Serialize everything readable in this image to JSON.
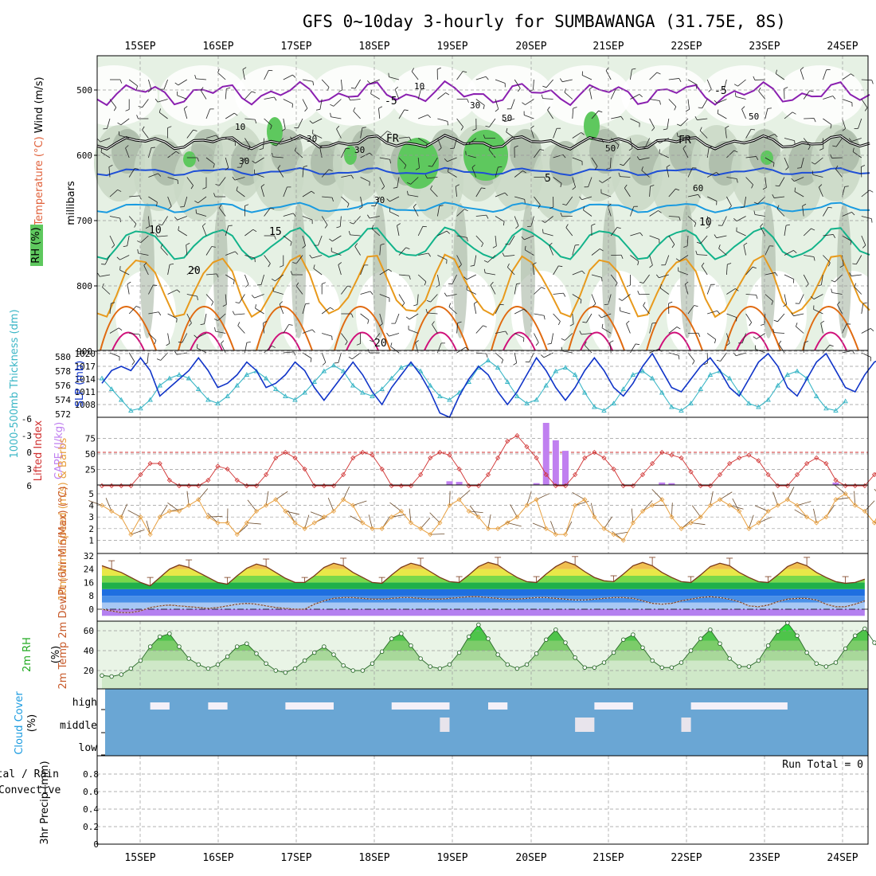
{
  "header": {
    "title": "GFS 0~10day 3-hourly for SUMBAWANGA (31.75E, 8S)"
  },
  "colors": {
    "purple": "#8a1fb0",
    "blue": "#1f4fd6",
    "lightblue": "#1a9be0",
    "teal": "#12b38a",
    "orange": "#e89a1c",
    "darkorange": "#e06a10",
    "magenta": "#d0107a",
    "rhLight": "#e6f1e4",
    "rhMid": "#c9d8c6",
    "rhDark": "#a6b5a3",
    "rhGreen": "#5ec85e",
    "slp": "#1034c8",
    "thick": "#3ab6c6",
    "li": "#d03030",
    "cape": "#c080f0",
    "wind": "#e8a040",
    "cloud": "#6aa6d4"
  },
  "chart_data": [
    {
      "type": "heatmap",
      "panel": "upper-air cross section",
      "title": "Temperature (°C) Wind (m/s) RH (%)",
      "ylabel": "millibars",
      "y_ticks": [
        "500",
        "600",
        "700",
        "800",
        "900"
      ],
      "ylim": [
        1000,
        450
      ],
      "x_dates": [
        "15SEP",
        "16SEP",
        "17SEP",
        "18SEP",
        "19SEP",
        "20SEP",
        "21SEP",
        "22SEP",
        "23SEP",
        "24SEP"
      ],
      "legend": {
        "rh": "RH (%)",
        "temperature": "Temperature (°C)",
        "wind": "Wind (m/s)"
      },
      "isotherm_labels": [
        "-5",
        "-5",
        "FR",
        "FR",
        "5",
        "10",
        "10",
        "15",
        "20",
        "20"
      ],
      "rh_contour_labels": [
        "10",
        "10",
        "30",
        "30",
        "30",
        "30",
        "50",
        "50",
        "50",
        "60",
        "30"
      ],
      "isotherms": [
        {
          "name": "-5",
          "level_mb": 505
        },
        {
          "name": "0 (FR)",
          "level_mb": 580
        },
        {
          "name": "5",
          "level_mb": 625
        },
        {
          "name": "10",
          "level_mb": 680
        },
        {
          "name": "15",
          "level_mb": 735
        },
        {
          "name": "20",
          "level_mb": 800
        }
      ]
    },
    {
      "type": "line",
      "panel": "thickness and SLP",
      "ylabel_left": "1000-500mb Thickness (dm)",
      "ylabel_right": "SLP (mb)",
      "left_ticks": [
        "580",
        "578",
        "576",
        "574",
        "572"
      ],
      "right_ticks": [
        "1020",
        "1017",
        "1014",
        "1011",
        "1008"
      ],
      "series": [
        {
          "name": "SLP",
          "values": [
            1013,
            1016,
            1017,
            1016,
            1019,
            1016,
            1010,
            1012,
            1014,
            1016,
            1019,
            1016,
            1012,
            1013,
            1015,
            1018,
            1016,
            1012,
            1013,
            1015,
            1018,
            1016,
            1012,
            1009,
            1012,
            1015,
            1018,
            1015,
            1011,
            1008,
            1012,
            1015,
            1018,
            1015,
            1011,
            1006,
            1005,
            1010,
            1014,
            1017,
            1015,
            1011,
            1008,
            1011,
            1015,
            1019,
            1016,
            1012,
            1009,
            1012,
            1016,
            1019,
            1016,
            1012,
            1010,
            1013,
            1017,
            1020,
            1016,
            1012,
            1011,
            1014,
            1017,
            1019,
            1016,
            1012,
            1010,
            1014,
            1018,
            1020,
            1017,
            1012,
            1010,
            1014,
            1018,
            1020,
            1016,
            1012,
            1011,
            1015,
            1018,
            1019
          ]
        },
        {
          "name": "Thickness",
          "values": [
            577,
            575.5,
            574,
            572.5,
            572.8,
            574,
            576,
            577,
            577.5,
            577,
            575.5,
            574,
            573.5,
            574.5,
            576,
            577.5,
            578,
            577,
            575.5,
            574.5,
            574,
            575,
            576.5,
            578,
            578.8,
            578,
            576,
            575,
            574.5,
            575.5,
            577,
            578.5,
            579,
            578,
            576,
            574.5,
            574,
            575,
            576.5,
            578.5,
            579.5,
            578.5,
            576.5,
            574.5,
            573.5,
            574,
            576,
            578,
            578.5,
            577.5,
            575,
            573,
            572.5,
            573.5,
            575.5,
            577.5,
            578,
            577,
            575,
            573,
            572.5,
            573.5,
            575.5,
            577.5,
            578,
            577,
            575,
            573.5,
            573,
            574,
            576,
            577.5,
            578,
            577,
            574.5,
            572.8,
            572.5,
            573.8
          ]
        }
      ]
    },
    {
      "type": "bar",
      "panel": "stability",
      "ylabel_left": "Lifted Index",
      "ylabel_right": "CAPE (J/kg)",
      "left_ticks": [
        "-6",
        "-3",
        "0",
        "3",
        "6"
      ],
      "right_ticks": [
        "75",
        "50",
        "25"
      ],
      "cape_bars": [
        {
          "t": 36,
          "v": 6
        },
        {
          "t": 37,
          "v": 5
        },
        {
          "t": 45,
          "v": 3
        },
        {
          "t": 46,
          "v": 100
        },
        {
          "t": 47,
          "v": 72
        },
        {
          "t": 48,
          "v": 55
        },
        {
          "t": 58,
          "v": 4
        },
        {
          "t": 59,
          "v": 3
        },
        {
          "t": 76,
          "v": 4
        },
        {
          "t": 84,
          "v": 4
        }
      ],
      "lifted_index": [
        6,
        6,
        6,
        6,
        4,
        2,
        2,
        5,
        6,
        6,
        6,
        5,
        2.5,
        3,
        5,
        6,
        6,
        4,
        1,
        0,
        1,
        3,
        6,
        6,
        6,
        4,
        1,
        0,
        0.5,
        3,
        6,
        6,
        6,
        4,
        1,
        0,
        0.5,
        3,
        6,
        6,
        4,
        1,
        -2,
        -3,
        -1,
        1,
        4,
        6,
        6,
        4,
        1,
        0,
        1,
        3,
        6,
        6,
        4,
        2,
        0,
        0.5,
        1,
        3.5,
        6,
        6,
        4,
        2,
        1,
        0.5,
        1.5,
        4,
        6,
        6,
        4,
        2,
        1,
        2,
        5,
        6,
        6,
        6,
        4,
        2
      ]
    },
    {
      "type": "line",
      "panel": "10m wind",
      "ylabel": "10m Wind Speed (m/s) & Barbs",
      "y_ticks": [
        "1",
        "2",
        "3",
        "4",
        "5"
      ],
      "series": [
        {
          "name": "Speed",
          "values": [
            4,
            3.5,
            3,
            1.5,
            3,
            1.5,
            3,
            3.5,
            3.5,
            4,
            4.5,
            3,
            2.5,
            2.5,
            1.5,
            2.5,
            3.5,
            4,
            4.5,
            3.5,
            2.5,
            2,
            2.5,
            3,
            3.5,
            4.5,
            4,
            2.5,
            2,
            2,
            3,
            3.5,
            2.5,
            2,
            1.5,
            2.5,
            4,
            4.5,
            3.5,
            3,
            2,
            2,
            2.5,
            3,
            4,
            4.5,
            2,
            1.5,
            1.5,
            4,
            4.5,
            3,
            2,
            1.5,
            1,
            2.5,
            3.5,
            4,
            4.5,
            3,
            2,
            2.5,
            3,
            4,
            4.5,
            4,
            3.5,
            2,
            2.5,
            3.5,
            4,
            4.5,
            4,
            3,
            2.5,
            3,
            4.5,
            5,
            4,
            3.5,
            2.5,
            4.5
          ]
        }
      ]
    },
    {
      "type": "area",
      "panel": "2m temperature",
      "ylabel": "2m Temp 2m DewPt (6hr Min/Max) (°C)",
      "y_ticks": [
        "32",
        "24",
        "16",
        "8",
        "0"
      ],
      "series": [
        {
          "name": "Temp",
          "values": [
            26,
            24,
            22,
            19,
            16,
            14,
            19,
            24,
            26.5,
            25,
            22,
            19,
            16,
            15,
            20,
            24.5,
            27,
            25.5,
            22,
            18.5,
            16,
            16,
            20,
            25,
            27.5,
            26,
            22,
            19,
            16,
            15.5,
            20.5,
            25,
            27.5,
            26,
            22.5,
            19,
            16.5,
            16,
            20.5,
            25.5,
            28,
            26.5,
            22.5,
            19,
            16.5,
            16,
            21,
            25.5,
            28.5,
            26.5,
            22.5,
            19,
            17,
            16.5,
            21,
            26,
            28,
            26,
            22,
            19,
            16.5,
            16,
            20.5,
            25.5,
            27.5,
            26,
            22,
            19,
            16.5,
            16,
            20.5,
            25.5,
            28,
            26,
            22,
            19,
            16.5,
            15.5,
            16,
            18
          ]
        },
        {
          "name": "DewPt",
          "values": [
            0,
            -1,
            -2,
            -2,
            -1,
            1,
            2,
            2.5,
            2,
            1.5,
            1,
            0.5,
            1,
            2,
            3,
            3.5,
            3,
            2,
            1,
            0.5,
            0,
            0,
            3,
            5,
            6.5,
            7,
            7,
            6.5,
            6,
            6,
            6.5,
            7,
            7,
            6.5,
            6,
            6,
            6.5,
            7,
            7.5,
            7.5,
            7,
            6.5,
            6,
            6,
            6.5,
            7,
            7,
            6.5,
            6,
            5.5,
            5.5,
            6,
            6.5,
            7,
            7,
            6.5,
            5,
            3.5,
            3,
            3.5,
            5,
            6,
            7,
            7.5,
            7,
            6,
            4.5,
            2,
            1.5,
            2.5,
            4.5,
            6,
            6.5,
            6.5,
            5.5,
            3,
            1.5,
            1.5,
            3,
            5
          ]
        }
      ]
    },
    {
      "type": "area",
      "panel": "2m relative humidity",
      "ylabel": "2m RH (%)",
      "y_ticks": [
        "60",
        "40",
        "20"
      ],
      "series": [
        {
          "name": "RH",
          "values": [
            15,
            14,
            16,
            22,
            30,
            44,
            54,
            57,
            44,
            32,
            26,
            22,
            26,
            34,
            44,
            47,
            37,
            27,
            20,
            18,
            22,
            30,
            38,
            44,
            36,
            25,
            20,
            20,
            27,
            39,
            52,
            57,
            45,
            32,
            24,
            22,
            26,
            38,
            54,
            66,
            52,
            36,
            26,
            22,
            26,
            37,
            51,
            61,
            48,
            33,
            23,
            23,
            28,
            38,
            51,
            56,
            43,
            30,
            23,
            23,
            28,
            40,
            52,
            61,
            47,
            32,
            24,
            24,
            30,
            45,
            59,
            68,
            55,
            38,
            27,
            24,
            28,
            42,
            55,
            62,
            48,
            34
          ]
        }
      ]
    },
    {
      "type": "bar",
      "panel": "cloud cover",
      "ylabel": "Cloud Cover (%)",
      "y_ticks": [
        "high",
        "middle",
        "low"
      ],
      "clear_high_ranges": [
        [
          5,
          7
        ],
        [
          11,
          13
        ],
        [
          19,
          24
        ],
        [
          30,
          36
        ],
        [
          40,
          42
        ],
        [
          51,
          55
        ],
        [
          61,
          71
        ],
        [
          82,
          92
        ],
        [
          96,
          98
        ]
      ],
      "clear_middle_ranges": [
        [
          35,
          36
        ],
        [
          49,
          51
        ],
        [
          60,
          61
        ]
      ]
    },
    {
      "type": "bar",
      "panel": "precipitation",
      "ylabel": "3hr Precip (mm)",
      "legend": [
        "Total / Rain",
        "Convective"
      ],
      "y_ticks": [
        "0.8",
        "0.6",
        "0.4",
        "0.2",
        "0"
      ],
      "ylim": [
        0,
        0.9
      ],
      "values": [],
      "run_total_text": "Run Total = 0"
    }
  ]
}
